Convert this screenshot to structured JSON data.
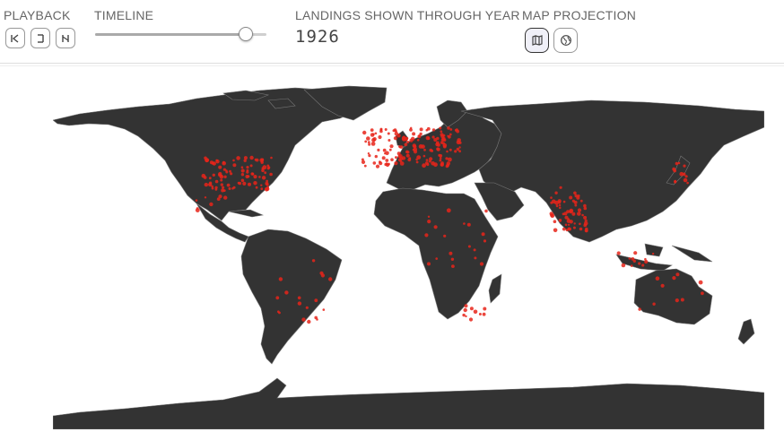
{
  "controls": {
    "playback_label": "PLAYBACK",
    "timeline_label": "TIMELINE",
    "year_label": "LANDINGS SHOWN THROUGH YEAR",
    "projection_label": "MAP PROJECTION",
    "year_value": "1926",
    "timeline_progress": 0.88,
    "playback_buttons": [
      "step-back-icon",
      "pause-icon",
      "step-forward-icon"
    ],
    "projection_buttons": [
      "flat-map-icon",
      "globe-icon"
    ],
    "active_projection": "flat-map-icon"
  },
  "map": {
    "land_color": "#333333",
    "border_color": "#777777",
    "point_color": "#e8241a",
    "points_legend": "meteorite landings (red dots)"
  }
}
